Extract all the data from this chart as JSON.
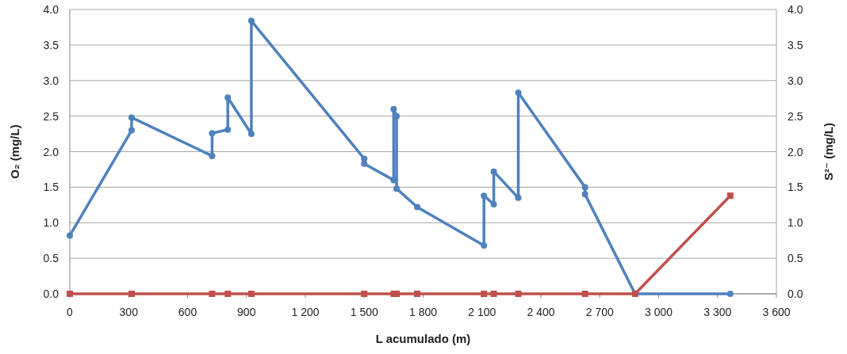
{
  "chart_data": {
    "type": "line",
    "xlabel": "L acumulado (m)",
    "ylabel": "O₂ (mg/L)",
    "y2label": "S²⁻ (mg/L)",
    "xlim": [
      0,
      3600
    ],
    "xticks": [
      0,
      300,
      600,
      900,
      {
        "value": 1200,
        "label": "1 200"
      },
      {
        "value": 1500,
        "label": "1 500"
      },
      {
        "value": 1800,
        "label": "1 800"
      },
      {
        "value": 2100,
        "label": "2 100"
      },
      {
        "value": 2400,
        "label": "2 400"
      },
      {
        "value": 2700,
        "label": "2 700"
      },
      {
        "value": 3000,
        "label": "3 000"
      },
      {
        "value": 3300,
        "label": "3 300"
      },
      {
        "value": 3600,
        "label": "3 600"
      }
    ],
    "ylim": [
      0,
      4
    ],
    "yticks": [
      {
        "value": 0,
        "label": "0.0"
      },
      0.5,
      {
        "value": 1,
        "label": "1.0"
      },
      1.5,
      {
        "value": 2,
        "label": "2.0"
      },
      2.5,
      {
        "value": 3,
        "label": "3.0"
      },
      3.5,
      {
        "value": 4,
        "label": "4.0"
      }
    ],
    "y2lim": [
      0,
      4
    ],
    "y2ticks": [
      {
        "value": 0,
        "label": "0.0"
      },
      0.5,
      {
        "value": 1,
        "label": "1.0"
      },
      1.5,
      {
        "value": 2,
        "label": "2.0"
      },
      2.5,
      {
        "value": 3,
        "label": "3.0"
      },
      3.5,
      {
        "value": 4,
        "label": "4.0"
      }
    ],
    "grid": "y",
    "series": [
      {
        "color": "#4f81bd",
        "marker": "circle",
        "x": [
          0,
          315,
          315,
          725,
          725,
          805,
          805,
          925,
          925,
          1500,
          1500,
          1650,
          1650,
          1665,
          1665,
          1770,
          2110,
          2110,
          2160,
          2160,
          2285,
          2285,
          2625,
          2625,
          2880,
          3365
        ],
        "values": [
          0.82,
          2.3,
          2.48,
          1.94,
          2.26,
          2.31,
          2.76,
          2.25,
          3.84,
          1.9,
          1.83,
          1.6,
          2.6,
          2.5,
          1.48,
          1.22,
          0.68,
          1.38,
          1.26,
          1.72,
          1.35,
          2.83,
          1.5,
          1.4,
          0,
          0
        ]
      },
      {
        "color": "#c0504d",
        "marker": "square",
        "axis": "y2",
        "x": [
          0,
          315,
          725,
          805,
          925,
          1500,
          1650,
          1665,
          1770,
          2110,
          2160,
          2285,
          2625,
          2880,
          3365
        ],
        "values": [
          0,
          0,
          0,
          0,
          0,
          0,
          0,
          0,
          0,
          0,
          0,
          0,
          0,
          0,
          1.38
        ]
      }
    ]
  }
}
